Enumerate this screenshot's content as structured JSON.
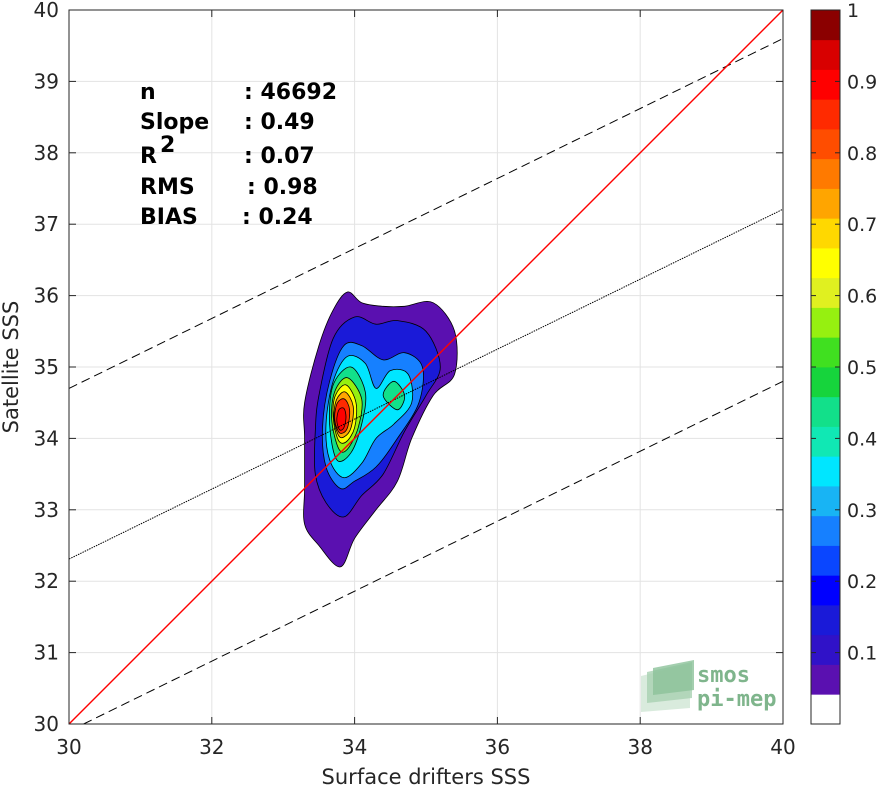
{
  "chart_data": {
    "type": "contour-scatter",
    "xlabel": "Surface drifters SSS",
    "ylabel": "Satellite SSS",
    "xlim": [
      30,
      40
    ],
    "ylim": [
      30,
      40
    ],
    "xticks": [
      "30",
      "32",
      "34",
      "36",
      "38",
      "40"
    ],
    "yticks": [
      "30",
      "31",
      "32",
      "33",
      "34",
      "35",
      "36",
      "37",
      "38",
      "39",
      "40"
    ],
    "grid": true,
    "stats": {
      "n": {
        "label": "n",
        "value": ": 46692"
      },
      "slope": {
        "label": "Slope",
        "value": ": 0.49"
      },
      "r2": {
        "label": "R",
        "sup": "2",
        "value": ": 0.07"
      },
      "rms": {
        "label": "RMS",
        "value": ": 0.98"
      },
      "bias": {
        "label": "BIAS",
        "value": ": 0.24"
      }
    },
    "lines": {
      "identity": {
        "color": "#ff0000",
        "slope": 1,
        "intercept": 0
      },
      "fit": {
        "color": "#000000",
        "style": "dotted",
        "slope": 0.49,
        "intercept": 17.61
      },
      "upper_bound": {
        "color": "#000000",
        "style": "dashed",
        "slope": 0.49,
        "intercept": 20.0
      },
      "lower_bound": {
        "color": "#000000",
        "style": "dashed",
        "slope": 0.49,
        "intercept": 15.2
      }
    },
    "density_contours": [
      {
        "level": 0.05,
        "points": [
          [
            33.3,
            34.0
          ],
          [
            33.3,
            34.5
          ],
          [
            33.5,
            35.3
          ],
          [
            33.7,
            35.8
          ],
          [
            33.9,
            36.05
          ],
          [
            34.1,
            35.9
          ],
          [
            34.4,
            35.85
          ],
          [
            34.7,
            35.85
          ],
          [
            35.1,
            35.9
          ],
          [
            35.4,
            35.5
          ],
          [
            35.4,
            34.9
          ],
          [
            35.1,
            34.6
          ],
          [
            34.8,
            34.0
          ],
          [
            34.6,
            33.4
          ],
          [
            34.3,
            33.0
          ],
          [
            34.0,
            32.6
          ],
          [
            33.8,
            32.2
          ],
          [
            33.5,
            32.5
          ],
          [
            33.3,
            32.8
          ],
          [
            33.3,
            33.3
          ]
        ]
      },
      {
        "level": 0.15,
        "points": [
          [
            33.45,
            34.1
          ],
          [
            33.5,
            34.6
          ],
          [
            33.7,
            35.4
          ],
          [
            34.0,
            35.7
          ],
          [
            34.3,
            35.6
          ],
          [
            34.6,
            35.65
          ],
          [
            35.0,
            35.5
          ],
          [
            35.2,
            35.0
          ],
          [
            35.0,
            34.6
          ],
          [
            34.7,
            34.1
          ],
          [
            34.4,
            33.5
          ],
          [
            34.1,
            33.2
          ],
          [
            33.85,
            32.9
          ],
          [
            33.6,
            33.1
          ],
          [
            33.45,
            33.5
          ]
        ]
      },
      {
        "level": 0.25,
        "points": [
          [
            33.55,
            34.15
          ],
          [
            33.65,
            34.8
          ],
          [
            33.85,
            35.3
          ],
          [
            34.1,
            35.3
          ],
          [
            34.4,
            35.1
          ],
          [
            34.7,
            35.2
          ],
          [
            34.95,
            35.0
          ],
          [
            34.9,
            34.5
          ],
          [
            34.6,
            34.0
          ],
          [
            34.3,
            33.6
          ],
          [
            34.0,
            33.4
          ],
          [
            33.8,
            33.3
          ],
          [
            33.6,
            33.6
          ]
        ]
      },
      {
        "level": 0.35,
        "points": [
          [
            33.6,
            34.2
          ],
          [
            33.7,
            34.8
          ],
          [
            33.9,
            35.15
          ],
          [
            34.15,
            35.05
          ],
          [
            34.3,
            34.7
          ],
          [
            34.5,
            34.95
          ],
          [
            34.75,
            34.9
          ],
          [
            34.8,
            34.5
          ],
          [
            34.55,
            34.2
          ],
          [
            34.3,
            34.0
          ],
          [
            34.1,
            33.65
          ],
          [
            33.85,
            33.45
          ],
          [
            33.65,
            33.7
          ]
        ]
      },
      {
        "level": 0.45,
        "points": [
          [
            33.65,
            34.2
          ],
          [
            33.7,
            34.75
          ],
          [
            33.95,
            35.0
          ],
          [
            34.15,
            34.65
          ],
          [
            34.1,
            34.2
          ],
          [
            33.95,
            33.8
          ],
          [
            33.75,
            33.7
          ]
        ]
      },
      {
        "level": 0.45,
        "points": [
          [
            34.4,
            34.6
          ],
          [
            34.55,
            34.8
          ],
          [
            34.7,
            34.6
          ],
          [
            34.6,
            34.4
          ]
        ]
      },
      {
        "level": 0.55,
        "points": [
          [
            33.68,
            34.25
          ],
          [
            33.72,
            34.65
          ],
          [
            33.9,
            34.85
          ],
          [
            34.1,
            34.55
          ],
          [
            34.05,
            34.15
          ],
          [
            33.9,
            33.85
          ],
          [
            33.78,
            33.85
          ]
        ]
      },
      {
        "level": 0.65,
        "points": [
          [
            33.7,
            34.3
          ],
          [
            33.73,
            34.6
          ],
          [
            33.88,
            34.75
          ],
          [
            34.02,
            34.5
          ],
          [
            34.0,
            34.15
          ],
          [
            33.88,
            33.95
          ],
          [
            33.77,
            33.98
          ]
        ]
      },
      {
        "level": 0.75,
        "points": [
          [
            33.71,
            34.3
          ],
          [
            33.75,
            34.55
          ],
          [
            33.87,
            34.65
          ],
          [
            33.98,
            34.45
          ],
          [
            33.95,
            34.15
          ],
          [
            33.85,
            34.02
          ],
          [
            33.77,
            34.05
          ]
        ]
      },
      {
        "level": 0.85,
        "points": [
          [
            33.72,
            34.3
          ],
          [
            33.76,
            34.5
          ],
          [
            33.86,
            34.55
          ],
          [
            33.93,
            34.4
          ],
          [
            33.9,
            34.15
          ],
          [
            33.82,
            34.07
          ],
          [
            33.76,
            34.12
          ]
        ]
      },
      {
        "level": 0.92,
        "points": [
          [
            33.75,
            34.25
          ],
          [
            33.78,
            34.4
          ],
          [
            33.85,
            34.42
          ],
          [
            33.88,
            34.3
          ],
          [
            33.85,
            34.15
          ],
          [
            33.79,
            34.12
          ]
        ]
      }
    ],
    "colorbar": {
      "range": [
        0,
        1
      ],
      "ticks": [
        "0.1",
        "0.2",
        "0.3",
        "0.4",
        "0.5",
        "0.6",
        "0.7",
        "0.8",
        "0.9",
        "1"
      ],
      "colors": [
        "#ffffff",
        "#5a10b0",
        "#3012c8",
        "#1a1ad8",
        "#0000ff",
        "#0a46ff",
        "#1680ff",
        "#18b4f4",
        "#00e6ff",
        "#10e8b4",
        "#12e08a",
        "#16d43c",
        "#40e020",
        "#96f010",
        "#e0f020",
        "#ffff00",
        "#ffd800",
        "#ffa500",
        "#ff7a00",
        "#ff4d00",
        "#ff2a00",
        "#ff0000",
        "#d80000",
        "#8b0000"
      ]
    },
    "logo": {
      "line1": "smos",
      "line2": "pi-mep",
      "color": "#7fb58c"
    }
  }
}
